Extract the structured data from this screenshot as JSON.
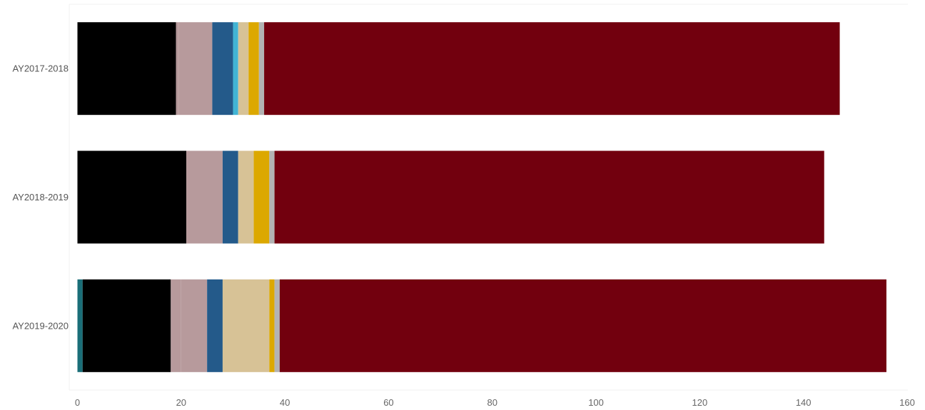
{
  "chart_data": {
    "type": "bar",
    "orientation": "horizontal",
    "stacked": true,
    "title": "",
    "xlabel": "",
    "ylabel": "",
    "xlim": [
      0,
      160
    ],
    "x_ticks": [
      "0",
      "20",
      "40",
      "60",
      "80",
      "100",
      "120",
      "140",
      "160"
    ],
    "grid": false,
    "legend": "none",
    "categories": [
      "AY2017-2018",
      "AY2018-2019",
      "AY2019-2020"
    ],
    "series": [
      {
        "color": "#1a6e78",
        "values": [
          0,
          0,
          1
        ]
      },
      {
        "color": "#000000",
        "values": [
          19,
          21,
          17
        ]
      },
      {
        "color": "#b79a9c",
        "values": [
          0.5,
          0,
          2
        ]
      },
      {
        "color": "#b79a9c",
        "values": [
          6.5,
          7,
          5
        ]
      },
      {
        "color": "#245a8a",
        "values": [
          4,
          3,
          3
        ]
      },
      {
        "color": "#42b4d4",
        "values": [
          1,
          0,
          0
        ]
      },
      {
        "color": "#d7c296",
        "values": [
          2,
          3,
          9
        ]
      },
      {
        "color": "#dca800",
        "values": [
          2,
          3,
          1
        ]
      },
      {
        "color": "#b3b3b3",
        "values": [
          1,
          1,
          1
        ]
      },
      {
        "color": "#72000e",
        "values": [
          111,
          106,
          117
        ]
      }
    ]
  }
}
